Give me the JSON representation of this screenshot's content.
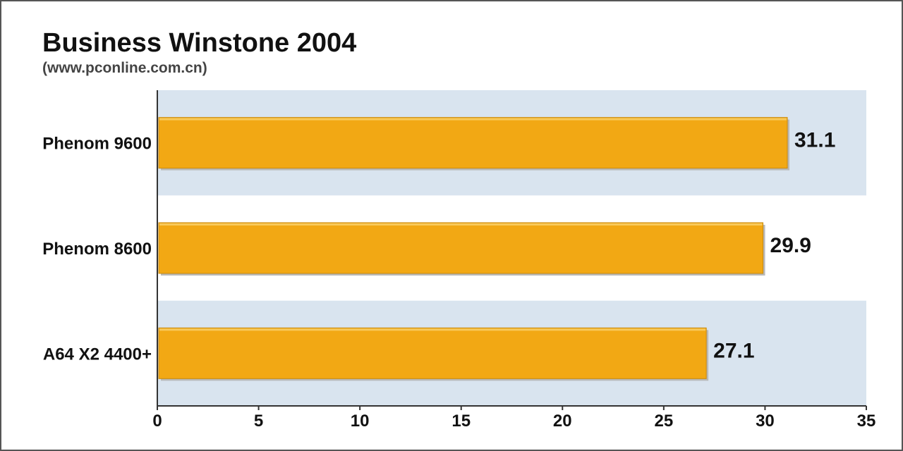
{
  "chart_data": {
    "type": "bar",
    "orientation": "horizontal",
    "title": "Business Winstone 2004",
    "subtitle": "(www.pconline.com.cn)",
    "categories": [
      "Phenom 9600",
      "Phenom 8600",
      "A64 X2 4400+"
    ],
    "values": [
      31.1,
      29.9,
      27.1
    ],
    "value_labels": [
      "31.1",
      "29.9",
      "27.1"
    ],
    "xlim": [
      0,
      35
    ],
    "xticks": [
      0,
      5,
      10,
      15,
      20,
      25,
      30,
      35
    ],
    "xlabel": "",
    "ylabel": "",
    "grid": false,
    "legend": "none",
    "colors": {
      "bar": "#f2a814",
      "bar_edge": "#c98a0c",
      "band": "#d9e4ef",
      "axis": "#333333",
      "text": "#111111"
    }
  }
}
